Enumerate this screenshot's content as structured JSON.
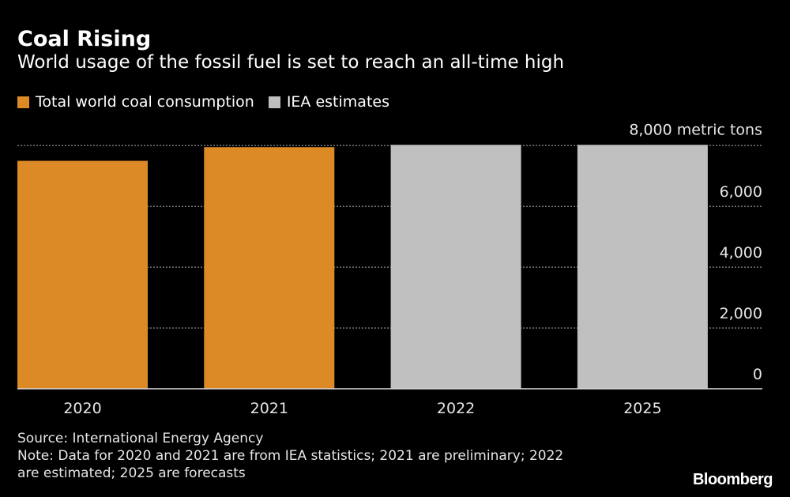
{
  "title": "Coal Rising",
  "subtitle": "World usage of the fossil fuel is set to reach an all-time high",
  "legend": [
    {
      "label": "Total world coal consumption",
      "color": "#dc8a26"
    },
    {
      "label": "IEA estimates",
      "color": "#c0c0c0"
    }
  ],
  "footer": {
    "source": "Source: International Energy Agency",
    "note_line1": "Note: Data for 2020 and 2021 are from IEA statistics; 2021 are preliminary; 2022",
    "note_line2": "are estimated; 2025 are forecasts"
  },
  "logo": "Bloomberg",
  "chart_data": {
    "type": "bar",
    "categories": [
      "2020",
      "2021",
      "2022",
      "2025"
    ],
    "values": [
      7500,
      7950,
      8025,
      8025
    ],
    "colors": [
      "#dc8a26",
      "#dc8a26",
      "#c0c0c0",
      "#c0c0c0"
    ],
    "ylim": [
      0,
      8000
    ],
    "yticks": [
      0,
      2000,
      4000,
      6000,
      8000
    ],
    "ytick_labels": [
      "0",
      "2,000",
      "4,000",
      "6,000",
      "8,000 metric tons"
    ],
    "y_axis_position": "right",
    "grid": true
  }
}
